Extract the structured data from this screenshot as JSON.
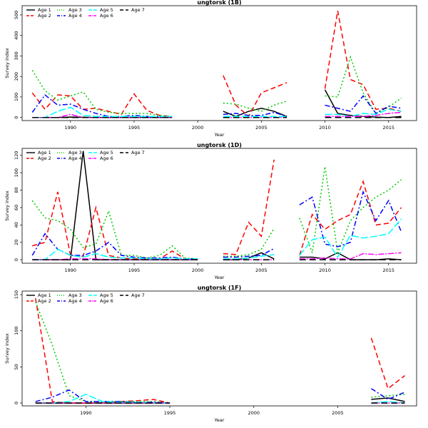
{
  "colors": {
    "Age 1": "#000000",
    "Age 2": "#ff0000",
    "Age 3": "#00cc00",
    "Age 4": "#0000ff",
    "Age 5": "#00ffff",
    "Age 6": "#ff00ff",
    "Age 7": "#000000"
  },
  "chart_data": [
    {
      "type": "line",
      "title": "ungtorsk (1B)",
      "xlabel": "Year",
      "ylabel": "Survey index",
      "xlim": [
        1986.2,
        2017.2
      ],
      "ylim": [
        -15,
        545
      ],
      "xticks": [
        1990,
        1995,
        2000,
        2005,
        2010,
        2015
      ],
      "yticks": [
        0,
        100,
        200,
        300,
        400,
        500
      ],
      "legend": "top-left",
      "x": [
        1987,
        1988,
        1989,
        1990,
        1991,
        1992,
        1993,
        1994,
        1995,
        1996,
        1997,
        1998,
        1999,
        2000,
        2001,
        2002,
        2003,
        2004,
        2005,
        2006,
        2007,
        2008,
        2009,
        2010,
        2011,
        2012,
        2013,
        2014,
        2015,
        2016
      ],
      "series": [
        {
          "name": "Age 1",
          "values": [
            0,
            0,
            0,
            2,
            1,
            0,
            0,
            0,
            0,
            0,
            0,
            0,
            null,
            null,
            null,
            30,
            5,
            30,
            45,
            30,
            5,
            null,
            null,
            135,
            20,
            10,
            5,
            2,
            0,
            5
          ]
        },
        {
          "name": "Age 2",
          "values": [
            120,
            40,
            110,
            105,
            40,
            45,
            30,
            15,
            115,
            35,
            10,
            5,
            null,
            null,
            null,
            205,
            60,
            5,
            120,
            145,
            170,
            null,
            null,
            140,
            520,
            185,
            160,
            40,
            45,
            30
          ]
        },
        {
          "name": "Age 3",
          "values": [
            230,
            130,
            85,
            105,
            125,
            40,
            25,
            20,
            20,
            20,
            10,
            5,
            null,
            null,
            null,
            70,
            65,
            45,
            30,
            60,
            80,
            null,
            null,
            105,
            100,
            295,
            120,
            20,
            50,
            95
          ]
        },
        {
          "name": "Age 4",
          "values": [
            25,
            110,
            60,
            65,
            40,
            20,
            5,
            5,
            10,
            5,
            5,
            5,
            null,
            null,
            null,
            15,
            20,
            10,
            10,
            25,
            5,
            null,
            null,
            60,
            45,
            30,
            105,
            20,
            55,
            45
          ]
        },
        {
          "name": "Age 5",
          "values": [
            0,
            0,
            30,
            50,
            10,
            5,
            5,
            5,
            5,
            5,
            5,
            5,
            null,
            null,
            null,
            5,
            5,
            5,
            5,
            5,
            5,
            null,
            null,
            15,
            15,
            5,
            20,
            15,
            40,
            30
          ]
        },
        {
          "name": "Age 6",
          "values": [
            0,
            0,
            0,
            15,
            0,
            0,
            0,
            0,
            0,
            0,
            0,
            0,
            null,
            null,
            null,
            0,
            0,
            0,
            0,
            0,
            0,
            null,
            null,
            5,
            5,
            5,
            5,
            10,
            20,
            25
          ]
        },
        {
          "name": "Age 7",
          "values": [
            0,
            0,
            0,
            0,
            0,
            0,
            0,
            0,
            0,
            0,
            0,
            0,
            null,
            null,
            null,
            0,
            0,
            0,
            0,
            0,
            0,
            null,
            null,
            0,
            0,
            0,
            0,
            0,
            0,
            0
          ]
        }
      ]
    },
    {
      "type": "line",
      "title": "ungtorsk (1D)",
      "xlabel": "Year",
      "ylabel": "Survey index",
      "xlim": [
        1986.2,
        2017.2
      ],
      "ylim": [
        -4,
        128
      ],
      "xticks": [
        1990,
        1995,
        2000,
        2005,
        2010,
        2015
      ],
      "yticks": [
        0,
        20,
        40,
        60,
        80,
        100,
        120
      ],
      "legend": "top-left",
      "x": [
        1987,
        1988,
        1989,
        1990,
        1991,
        1992,
        1993,
        1994,
        1995,
        1996,
        1997,
        1998,
        1999,
        2000,
        2001,
        2002,
        2003,
        2004,
        2005,
        2006,
        2007,
        2008,
        2009,
        2010,
        2011,
        2012,
        2013,
        2014,
        2015,
        2016
      ],
      "series": [
        {
          "name": "Age 1",
          "values": [
            0,
            0,
            0,
            0,
            125,
            0,
            0,
            0,
            0,
            0,
            0,
            0,
            0,
            0,
            null,
            0,
            0,
            2,
            8,
            1,
            null,
            3,
            3,
            1,
            8,
            0,
            0,
            0,
            1,
            0
          ]
        },
        {
          "name": "Age 2",
          "values": [
            16,
            20,
            78,
            5,
            4,
            60,
            5,
            2,
            1,
            1,
            1,
            10,
            1,
            1,
            null,
            7,
            6,
            43,
            27,
            115,
            null,
            5,
            52,
            35,
            45,
            52,
            90,
            40,
            42,
            60
          ]
        },
        {
          "name": "Age 3",
          "values": [
            68,
            48,
            45,
            35,
            14,
            18,
            56,
            5,
            5,
            2,
            5,
            16,
            2,
            1,
            null,
            4,
            4,
            6,
            12,
            36,
            null,
            48,
            8,
            107,
            8,
            45,
            60,
            72,
            80,
            92
          ]
        },
        {
          "name": "Age 4",
          "values": [
            5,
            30,
            12,
            5,
            5,
            10,
            20,
            5,
            3,
            2,
            2,
            3,
            1,
            1,
            null,
            3,
            3,
            4,
            5,
            13,
            null,
            63,
            72,
            18,
            15,
            20,
            78,
            45,
            68,
            32
          ]
        },
        {
          "name": "Age 5",
          "values": [
            0,
            0,
            12,
            5,
            3,
            7,
            3,
            2,
            2,
            1,
            1,
            2,
            1,
            1,
            null,
            1,
            1,
            2,
            4,
            6,
            null,
            5,
            23,
            26,
            3,
            28,
            25,
            27,
            30,
            47
          ]
        },
        {
          "name": "Age 6",
          "values": [
            0,
            0,
            0,
            1,
            1,
            1,
            0,
            0,
            0,
            0,
            0,
            0,
            0,
            0,
            null,
            0,
            0,
            0,
            0,
            0,
            null,
            1,
            1,
            2,
            1,
            1,
            7,
            6,
            7,
            8
          ]
        },
        {
          "name": "Age 7",
          "values": [
            0,
            0,
            0,
            0,
            0,
            0,
            0,
            0,
            0,
            0,
            0,
            0,
            0,
            0,
            null,
            0,
            0,
            0,
            0,
            0,
            null,
            0,
            0,
            0,
            0,
            0,
            0,
            0,
            0,
            0
          ]
        }
      ]
    },
    {
      "type": "line",
      "title": "ungtorsk (1F)",
      "xlabel": "Year",
      "ylabel": "Survey index",
      "xlim": [
        1986.2,
        2009.7
      ],
      "ylim": [
        -4,
        155
      ],
      "xticks": [
        1990,
        1995,
        2000,
        2005
      ],
      "yticks": [
        0,
        50,
        100,
        150
      ],
      "legend": "top-left",
      "x": [
        1987,
        1988,
        1989,
        1990,
        1991,
        1992,
        1993,
        1994,
        1995,
        1996,
        1997,
        1998,
        1999,
        2000,
        2001,
        2002,
        2003,
        2004,
        2005,
        2006,
        2007,
        2008,
        2009
      ],
      "series": [
        {
          "name": "Age 1",
          "values": [
            0,
            0,
            0,
            0,
            0,
            0,
            0,
            0,
            0,
            null,
            null,
            null,
            null,
            null,
            null,
            null,
            null,
            null,
            null,
            null,
            5,
            7,
            2
          ]
        },
        {
          "name": "Age 2",
          "values": [
            145,
            2,
            0,
            0,
            0,
            2,
            3,
            5,
            0,
            null,
            null,
            null,
            null,
            null,
            null,
            null,
            null,
            null,
            null,
            null,
            90,
            20,
            38
          ]
        },
        {
          "name": "Age 3",
          "values": [
            140,
            80,
            10,
            2,
            2,
            2,
            2,
            2,
            0,
            null,
            null,
            null,
            null,
            null,
            null,
            null,
            null,
            null,
            null,
            null,
            8,
            10,
            12
          ]
        },
        {
          "name": "Age 4",
          "values": [
            2,
            8,
            18,
            2,
            2,
            2,
            1,
            1,
            0,
            null,
            null,
            null,
            null,
            null,
            null,
            null,
            null,
            null,
            null,
            null,
            20,
            5,
            15
          ]
        },
        {
          "name": "Age 5",
          "values": [
            0,
            0,
            2,
            12,
            2,
            1,
            1,
            0,
            0,
            null,
            null,
            null,
            null,
            null,
            null,
            null,
            null,
            null,
            null,
            null,
            0,
            2,
            0
          ]
        },
        {
          "name": "Age 6",
          "values": [
            0,
            0,
            0,
            0,
            0,
            0,
            0,
            0,
            0,
            null,
            null,
            null,
            null,
            null,
            null,
            null,
            null,
            null,
            null,
            null,
            0,
            0,
            0
          ]
        },
        {
          "name": "Age 7",
          "values": [
            0,
            0,
            0,
            0,
            0,
            0,
            0,
            0,
            0,
            null,
            null,
            null,
            null,
            null,
            null,
            null,
            null,
            null,
            null,
            null,
            0,
            0,
            0
          ]
        }
      ]
    }
  ]
}
